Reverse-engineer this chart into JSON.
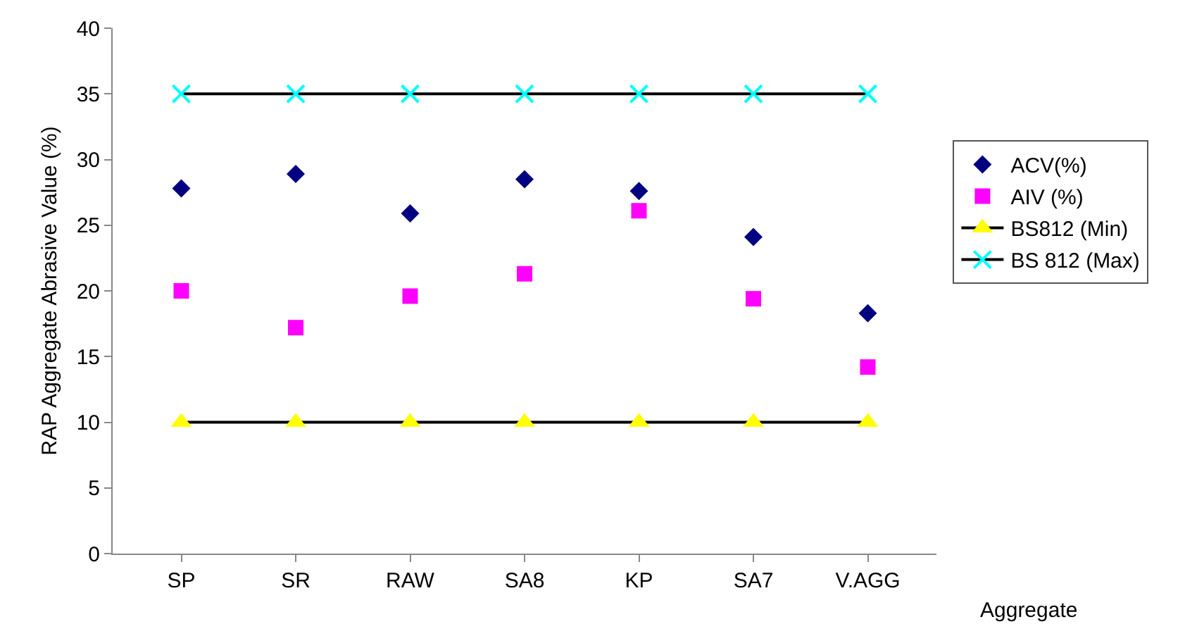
{
  "chart_data": {
    "type": "scatter",
    "ylabel": "RAP Aggregate Abrasive Value (%)",
    "xlabel": "Aggregate",
    "categories": [
      "SP",
      "SR",
      "RAW",
      "SA8",
      "KP",
      "SA7",
      "V.AGG"
    ],
    "series": [
      {
        "name": "ACV(%)",
        "marker": "diamond",
        "color": "#000080",
        "values": [
          27.8,
          28.9,
          25.9,
          28.5,
          27.6,
          24.1,
          18.3
        ]
      },
      {
        "name": "AIV (%)",
        "marker": "square",
        "color": "#ff00ff",
        "values": [
          20,
          17.2,
          19.6,
          21.3,
          26.1,
          19.4,
          14.2
        ]
      },
      {
        "name": "BS812 (Min)",
        "type": "line",
        "marker": "triangle",
        "color": "#000000",
        "colors": [
          "#ffff00",
          "#ffff00",
          "#ffff00",
          "#ffff00",
          "#ffff00",
          "#ffff00",
          "#ffff00"
        ],
        "values": [
          10,
          10,
          10,
          10,
          10,
          10,
          10
        ]
      },
      {
        "name": "BS 812 (Max)",
        "type": "line",
        "marker": "cross",
        "color": "#000000",
        "colors": [
          "#00ffff",
          "#00ffff",
          "#00ffff",
          "#00ffff",
          "#00ffff",
          "#00ffff",
          "#00ffff"
        ],
        "values": [
          35,
          35,
          35,
          35,
          35,
          35,
          35
        ]
      }
    ],
    "ylim": [
      0,
      40
    ],
    "yticks": [
      0,
      5,
      10,
      15,
      20,
      25,
      30,
      35,
      40
    ],
    "grid": false,
    "legend": "right"
  }
}
